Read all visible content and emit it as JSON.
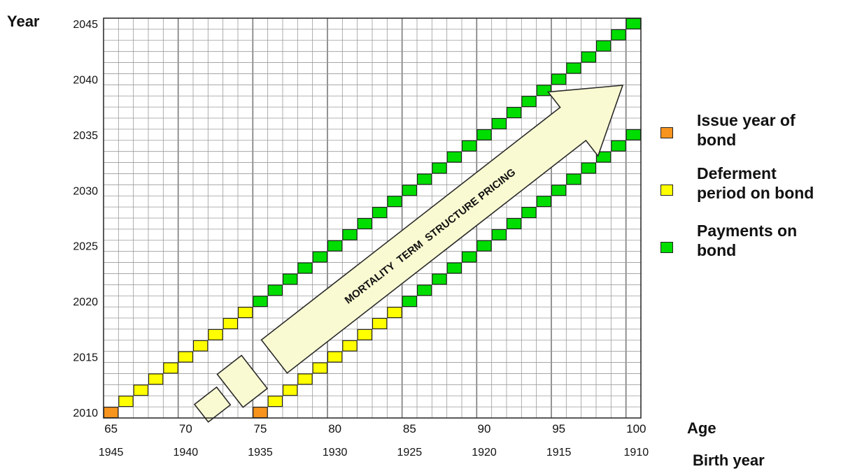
{
  "chart_data": {
    "type": "heatmap",
    "axes": {
      "y_title": "Year",
      "x_title_primary": "Age",
      "x_title_secondary": "Birth year",
      "y_range": [
        2010,
        2045
      ],
      "age_range": [
        65,
        100
      ],
      "y_ticks": [
        "2010",
        "2015",
        "2020",
        "2025",
        "2030",
        "2035",
        "2040",
        "2045"
      ],
      "x_ticks_age": [
        "65",
        "70",
        "75",
        "80",
        "85",
        "90",
        "95",
        "100"
      ],
      "x_ticks_birth": [
        "1945",
        "1940",
        "1935",
        "1930",
        "1925",
        "1920",
        "1915",
        "1910"
      ],
      "grid": true
    },
    "cohorts": [
      {
        "cohort": "age 65 in 2010",
        "cells": [
          {
            "age": 65,
            "year": 2010,
            "category": "issue"
          },
          {
            "age_from": 66,
            "age_to": 74,
            "year_from": 2011,
            "category": "deferment"
          },
          {
            "age_from": 75,
            "age_to": 100,
            "year_from": 2020,
            "category": "payment"
          }
        ]
      },
      {
        "cohort": "age 75 in 2010",
        "cells": [
          {
            "age": 75,
            "year": 2010,
            "category": "issue"
          },
          {
            "age_from": 76,
            "age_to": 84,
            "year_from": 2011,
            "category": "deferment"
          },
          {
            "age_from": 85,
            "age_to": 100,
            "year_from": 2020,
            "category": "payment"
          }
        ]
      }
    ],
    "legend": [
      {
        "key": "issue",
        "label": "Issue year of\nbond",
        "color": "#f7941d"
      },
      {
        "key": "deferment",
        "label": "Deferment\nperiod on bond",
        "color": "#ffff00"
      },
      {
        "key": "payment",
        "label": "Payments on\nbond",
        "color": "#00dd00"
      }
    ],
    "annotation": "MORTALITY  TERM  STRUCTURE PRICING",
    "colors": {
      "grid_minor": "#9a9a9a",
      "grid_major": "#7a7a7a",
      "arrow_fill": "#fafad2",
      "arrow_stroke": "#2b2b2b"
    }
  }
}
